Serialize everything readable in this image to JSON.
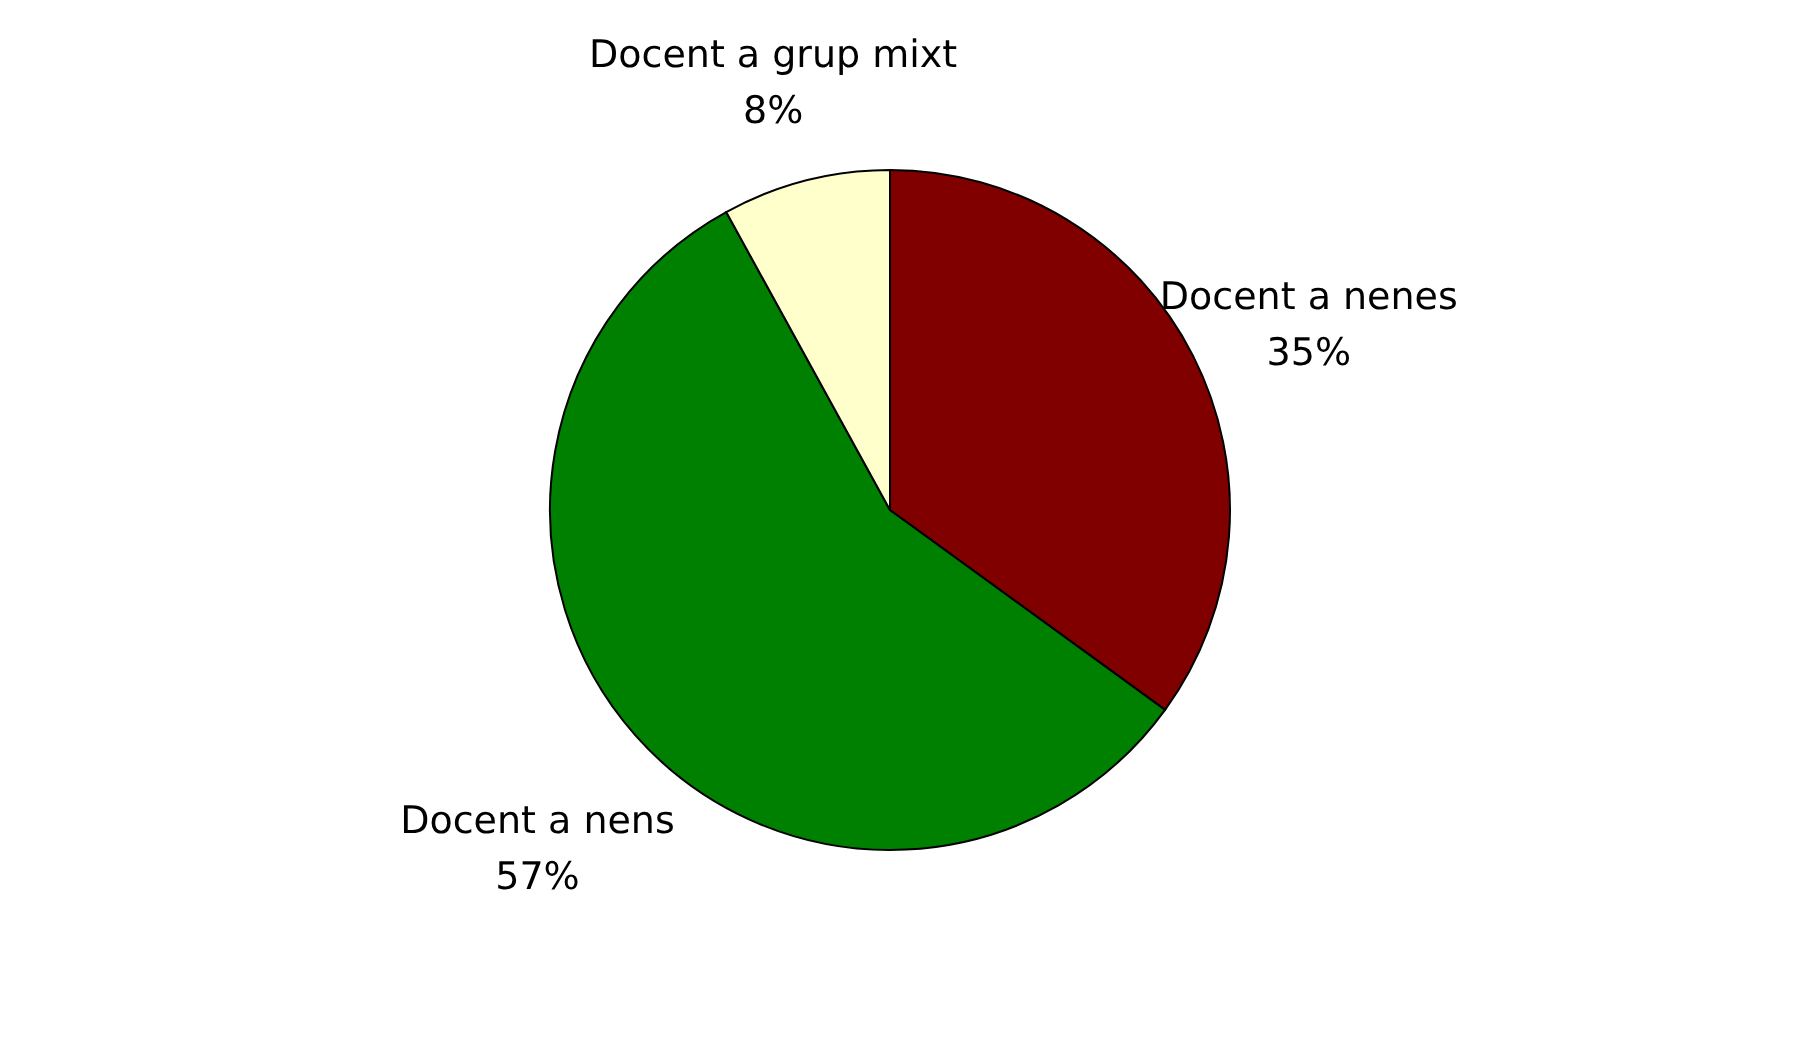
{
  "chart_data": {
    "type": "pie",
    "categories": [
      "Docent a nenes",
      "Docent a nens",
      "Docent a grup mixt"
    ],
    "values": [
      35,
      57,
      8
    ],
    "value_labels": [
      "35%",
      "57%",
      "8%"
    ],
    "colors": [
      "#800000",
      "#008000",
      "#ffffcc"
    ],
    "legend": false
  }
}
